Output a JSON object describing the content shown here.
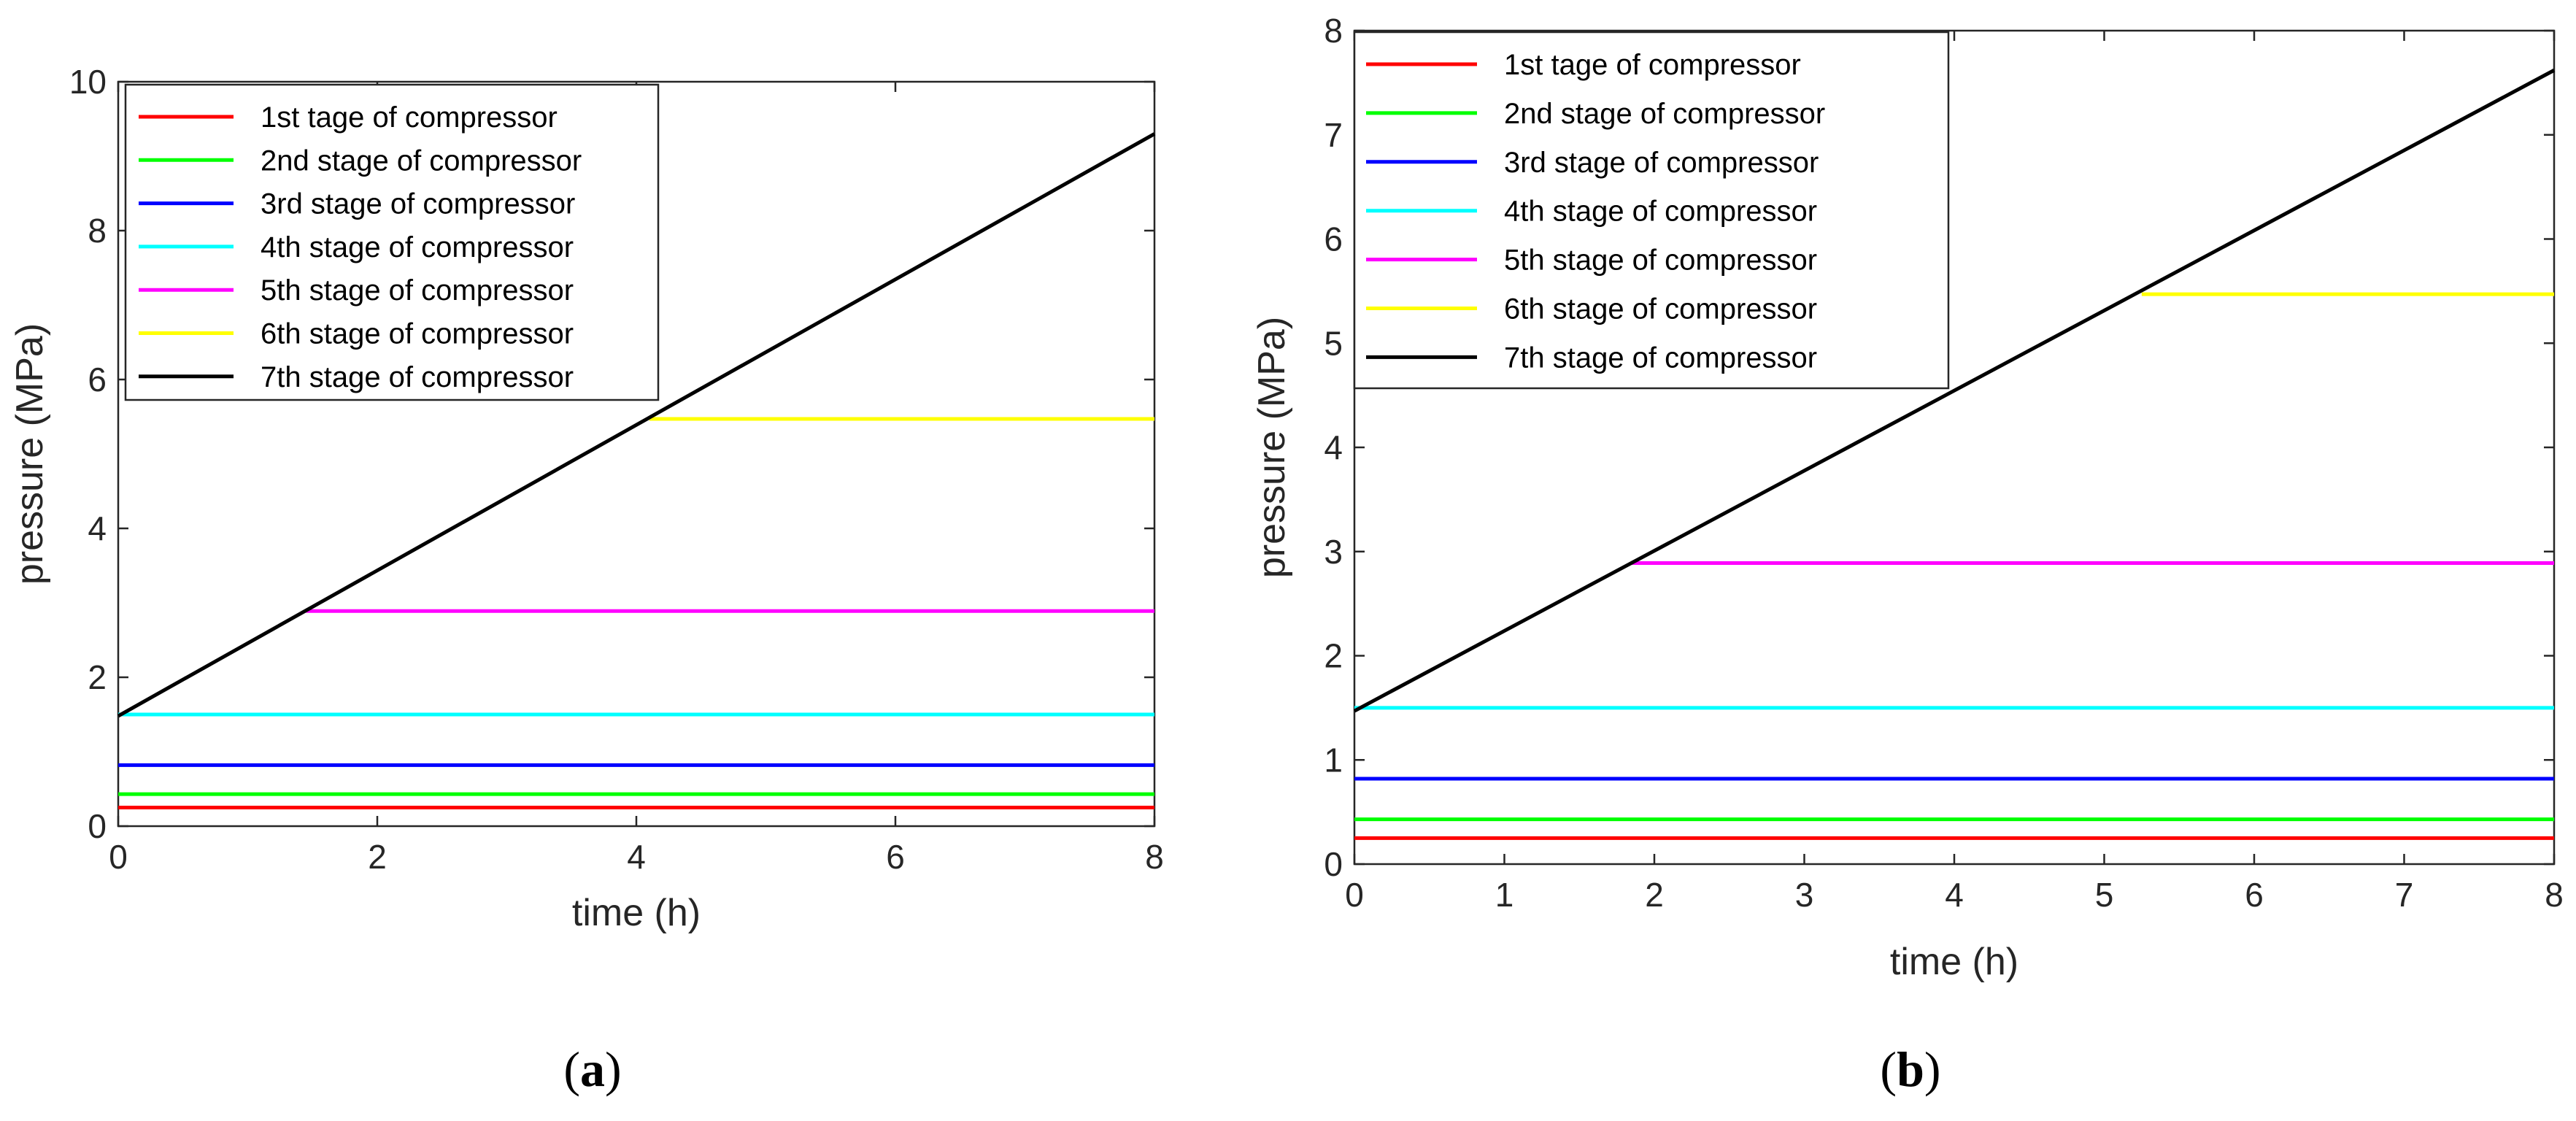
{
  "chart_data": [
    {
      "type": "line",
      "panel_label": "a",
      "title": "",
      "xlabel": "time (h)",
      "ylabel": "pressure (MPa)",
      "xlim": [
        0,
        8
      ],
      "ylim": [
        0,
        10
      ],
      "xticks": [
        0,
        2,
        4,
        6,
        8
      ],
      "yticks": [
        0,
        2,
        4,
        6,
        8,
        10
      ],
      "legend_position": "top-left",
      "series": [
        {
          "name": "1st tage of compressor",
          "color": "#ff0000",
          "x": [
            0,
            8
          ],
          "y": [
            0.25,
            0.25
          ]
        },
        {
          "name": "2nd stage of compressor",
          "color": "#00ff00",
          "x": [
            0,
            8
          ],
          "y": [
            0.43,
            0.43
          ]
        },
        {
          "name": "3rd stage of compressor",
          "color": "#0000ff",
          "x": [
            0,
            8
          ],
          "y": [
            0.82,
            0.82
          ]
        },
        {
          "name": "4th stage of compressor",
          "color": "#00ffff",
          "x": [
            0,
            8
          ],
          "y": [
            1.5,
            1.5
          ]
        },
        {
          "name": "5th stage of compressor",
          "color": "#ff00ff",
          "x": [
            1.45,
            8
          ],
          "y": [
            2.89,
            2.89
          ]
        },
        {
          "name": "6th stage of compressor",
          "color": "#ffff00",
          "x": [
            4.1,
            8
          ],
          "y": [
            5.47,
            5.47
          ]
        },
        {
          "name": "7th stage of compressor",
          "color": "#000000",
          "x": [
            0,
            8
          ],
          "y": [
            1.48,
            9.3
          ]
        }
      ]
    },
    {
      "type": "line",
      "panel_label": "b",
      "title": "",
      "xlabel": "time (h)",
      "ylabel": "pressure (MPa)",
      "xlim": [
        0,
        8
      ],
      "ylim": [
        0,
        8
      ],
      "xticks": [
        0,
        1,
        2,
        3,
        4,
        5,
        6,
        7,
        8
      ],
      "yticks": [
        0,
        1,
        2,
        3,
        4,
        5,
        6,
        7,
        8
      ],
      "legend_position": "top-left",
      "series": [
        {
          "name": "1st tage of compressor",
          "color": "#ff0000",
          "x": [
            0,
            8
          ],
          "y": [
            0.25,
            0.25
          ]
        },
        {
          "name": "2nd stage of compressor",
          "color": "#00ff00",
          "x": [
            0,
            8
          ],
          "y": [
            0.43,
            0.43
          ]
        },
        {
          "name": "3rd stage of compressor",
          "color": "#0000ff",
          "x": [
            0,
            8
          ],
          "y": [
            0.82,
            0.82
          ]
        },
        {
          "name": "4th stage of compressor",
          "color": "#00ffff",
          "x": [
            0,
            8
          ],
          "y": [
            1.5,
            1.5
          ]
        },
        {
          "name": "5th stage of compressor",
          "color": "#ff00ff",
          "x": [
            1.85,
            8
          ],
          "y": [
            2.89,
            2.89
          ]
        },
        {
          "name": "6th stage of compressor",
          "color": "#ffff00",
          "x": [
            5.25,
            8
          ],
          "y": [
            5.47,
            5.47
          ]
        },
        {
          "name": "7th stage of compressor",
          "color": "#000000",
          "x": [
            0,
            8
          ],
          "y": [
            1.47,
            7.62
          ]
        }
      ]
    }
  ]
}
